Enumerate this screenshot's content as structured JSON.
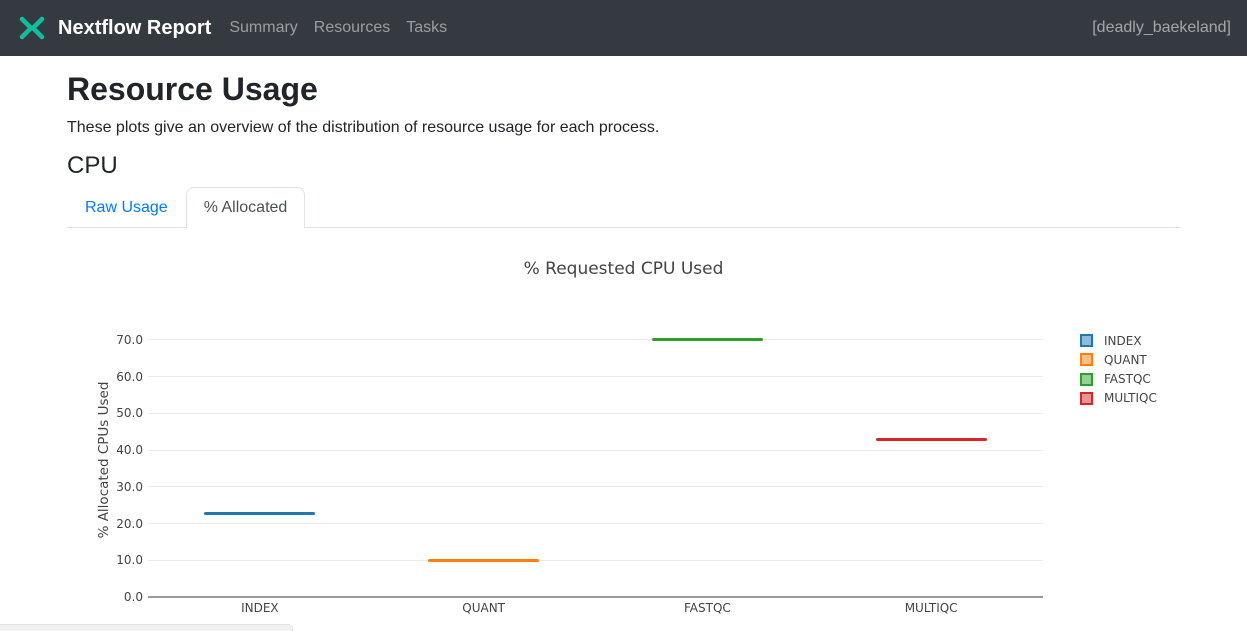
{
  "navbar": {
    "brand": "Nextflow Report",
    "items": [
      {
        "label": "Summary"
      },
      {
        "label": "Resources"
      },
      {
        "label": "Tasks"
      }
    ],
    "run_name": "[deadly_baekeland]"
  },
  "colors": {
    "navbar_bg": "#343a40",
    "logo_teal": "#0dc09d",
    "link_blue": "#007bff",
    "grid": "#ebebeb",
    "axis_line": "#999999",
    "chart_text": "#444444"
  },
  "page": {
    "title": "Resource Usage",
    "subtitle": "These plots give an overview of the distribution of resource usage for each process.",
    "section_heading": "CPU"
  },
  "tabs": [
    {
      "label": "Raw Usage",
      "active": false
    },
    {
      "label": "% Allocated",
      "active": true
    }
  ],
  "chart_data": {
    "type": "box",
    "title": "% Requested CPU Used",
    "xlabel": "",
    "ylabel": "% Allocated CPUs Used",
    "categories": [
      "INDEX",
      "QUANT",
      "FASTQC",
      "MULTIQC"
    ],
    "values": [
      22.8,
      9.9,
      70.0,
      42.9
    ],
    "series_colors": [
      "#1f77b4",
      "#ff7f0e",
      "#2ca02c",
      "#d62728"
    ],
    "yticks": [
      0,
      10,
      20,
      30,
      40,
      50,
      60,
      70
    ],
    "ytick_labels": [
      "0.0",
      "10.0",
      "20.0",
      "30.0",
      "40.0",
      "50.0",
      "60.0",
      "70.0"
    ],
    "ylim": [
      0,
      74.25
    ],
    "grid": true,
    "legend": {
      "position": "right",
      "entries": [
        "INDEX",
        "QUANT",
        "FASTQC",
        "MULTIQC"
      ]
    }
  }
}
